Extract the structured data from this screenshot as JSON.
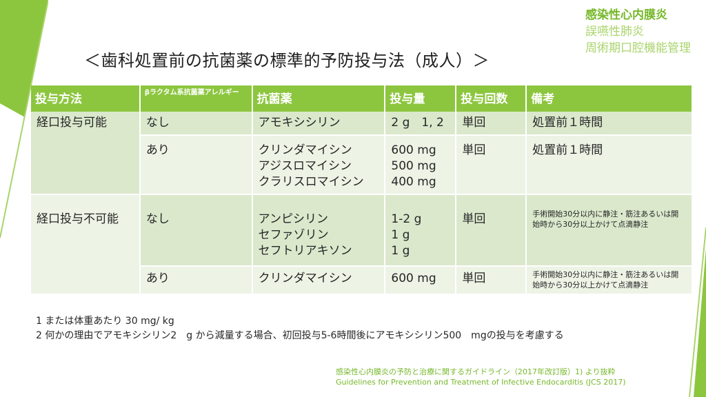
{
  "nav": {
    "active": "感染性心内膜炎",
    "items": [
      "誤嚥性肺炎",
      "周術期口腔機能管理"
    ]
  },
  "title": "＜歯科処置前の抗菌薬の標準的予防投与法（成人）＞",
  "table": {
    "headers": {
      "method": "投与方法",
      "allergy": "βラクタム系抗菌薬アレルギー",
      "drug": "抗菌薬",
      "dose": "投与量",
      "times": "投与回数",
      "notes": "備考"
    },
    "rows": [
      {
        "method": "経口投与可能",
        "allergy": "なし",
        "drugs": [
          "アモキシシリン"
        ],
        "doses": [
          "2 g　1, 2"
        ],
        "times": "単回",
        "notes": "処置前１時間"
      },
      {
        "method": "",
        "allergy": "あり",
        "drugs": [
          "クリンダマイシン",
          "アジスロマイシン",
          "クラリスロマイシン"
        ],
        "doses": [
          "600 mg",
          "500 mg",
          "400 mg"
        ],
        "times": "単回",
        "notes": "処置前１時間"
      },
      {
        "method": "経口投与不可能",
        "allergy": "なし",
        "drugs": [
          "アンピシリン",
          "セファゾリン",
          "セフトリアキソン"
        ],
        "doses": [
          "1-2 g",
          "1 g",
          "1 g"
        ],
        "times": "単回",
        "notes": "手術開始30分以内に静注・筋注あるいは開始時から30分以上かけて点滴静注"
      },
      {
        "method": "",
        "allergy": "あり",
        "drugs": [
          "クリンダマイシン"
        ],
        "doses": [
          "600 mg"
        ],
        "times": "単回",
        "notes": "手術開始30分以内に静注・筋注あるいは開始時から30分以上かけて点滴静注"
      }
    ]
  },
  "footnotes": [
    "1 または体重あたり 30 mg/ kg",
    "2 何かの理由でアモキシシリン2　g から減量する場合、初回投与5-6時間後にアモキシシリン500　mgの投与を考慮する"
  ],
  "source": {
    "line1": "感染性心内膜炎の予防と治療に関するガイドライン（2017年改訂版）1) より抜粋",
    "line2": "Guidelines for Prevention and Treatment of Infective Endocarditis (JCS 2017)"
  },
  "colors": {
    "accent": "#8cc63f",
    "accent_dark": "#76b82a",
    "row_light": "#edf3e5",
    "row_dark": "#dbe8cc"
  }
}
